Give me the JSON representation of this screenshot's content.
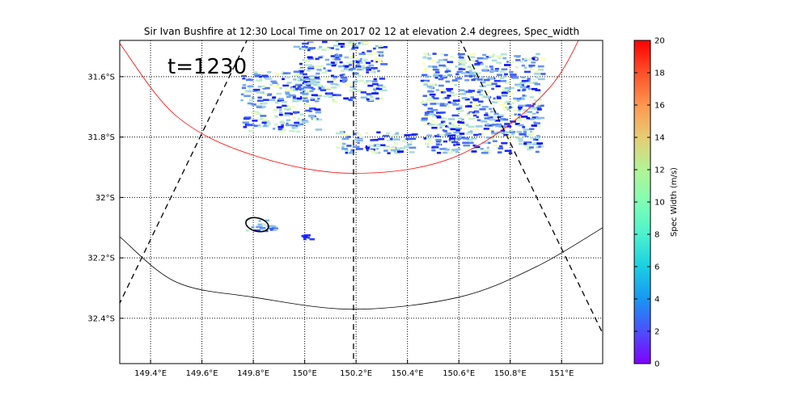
{
  "chart_data": {
    "type": "heatmap",
    "title": "Sir Ivan Bushfire at 12:30 Local Time on 2017 02 12 at elevation 2.4 degrees, Spec_width",
    "annotation": "t=1230",
    "xlabel": "",
    "ylabel": "",
    "xlim": [
      149.28,
      151.16
    ],
    "ylim": [
      -32.55,
      -31.48
    ],
    "x_ticks": [
      {
        "value": 149.4,
        "label": "149.4°E"
      },
      {
        "value": 149.6,
        "label": "149.6°E"
      },
      {
        "value": 149.8,
        "label": "149.8°E"
      },
      {
        "value": 150.0,
        "label": "150°E"
      },
      {
        "value": 150.2,
        "label": "150.2°E"
      },
      {
        "value": 150.4,
        "label": "150.4°E"
      },
      {
        "value": 150.6,
        "label": "150.6°E"
      },
      {
        "value": 150.8,
        "label": "150.8°E"
      },
      {
        "value": 151.0,
        "label": "151°E"
      }
    ],
    "y_ticks": [
      {
        "value": -31.6,
        "label": "31.6°S"
      },
      {
        "value": -31.8,
        "label": "31.8°S"
      },
      {
        "value": -32.0,
        "label": "32°S"
      },
      {
        "value": -32.2,
        "label": "32.2°S"
      },
      {
        "value": -32.4,
        "label": "32.4°S"
      }
    ],
    "grid": true,
    "radar_center": [
      150.19,
      -30.75
    ],
    "range_rings": [
      {
        "name": "inner-ring",
        "color": "#ff0000",
        "points": [
          [
            149.28,
            -31.49
          ],
          [
            149.5,
            -31.73
          ],
          [
            149.8,
            -31.86
          ],
          [
            150.19,
            -31.92
          ],
          [
            150.6,
            -31.86
          ],
          [
            150.95,
            -31.64
          ],
          [
            151.13,
            -31.36
          ]
        ]
      },
      {
        "name": "outer-ring",
        "color": "#000000",
        "points": [
          [
            149.28,
            -32.13
          ],
          [
            149.5,
            -32.28
          ],
          [
            149.8,
            -32.33
          ],
          [
            150.19,
            -32.37
          ],
          [
            150.6,
            -32.33
          ],
          [
            150.9,
            -32.23
          ],
          [
            151.16,
            -32.1
          ]
        ]
      }
    ],
    "dashed_lines": [
      {
        "name": "left-beam",
        "start": [
          150.19,
          -30.75
        ],
        "end": [
          149.28,
          -32.35
        ]
      },
      {
        "name": "center-beam",
        "start": [
          150.19,
          -30.75
        ],
        "end": [
          150.19,
          -32.55
        ]
      },
      {
        "name": "right-beam",
        "start": [
          150.19,
          -30.75
        ],
        "end": [
          151.16,
          -32.45
        ]
      }
    ],
    "fire_contour": {
      "center": [
        149.815,
        -32.09
      ],
      "rx": 0.045,
      "ry": 0.022,
      "color": "#000000"
    },
    "echo_regions": [
      {
        "name": "echo-nw-band",
        "lon": [
          149.75,
          150.05
        ],
        "lat": [
          -31.78,
          -31.58
        ],
        "value_range": [
          0,
          10
        ]
      },
      {
        "name": "echo-north",
        "lon": [
          149.95,
          150.3
        ],
        "lat": [
          -31.68,
          -31.48
        ],
        "value_range": [
          0,
          10
        ]
      },
      {
        "name": "echo-center",
        "lon": [
          150.12,
          150.42
        ],
        "lat": [
          -31.85,
          -31.78
        ],
        "value_range": [
          0,
          10
        ]
      },
      {
        "name": "echo-ne",
        "lon": [
          150.45,
          150.92
        ],
        "lat": [
          -31.85,
          -31.52
        ],
        "value_range": [
          0,
          10
        ]
      },
      {
        "name": "echo-fire",
        "lon": [
          149.76,
          149.88
        ],
        "lat": [
          -32.11,
          -32.07
        ],
        "value_range": [
          2,
          8
        ]
      },
      {
        "name": "echo-small",
        "lon": [
          149.98,
          150.02
        ],
        "lat": [
          -32.14,
          -32.12
        ],
        "value_range": [
          0,
          2
        ]
      }
    ],
    "colorbar": {
      "label": "Spec Width (m/s)",
      "min": 0,
      "max": 20,
      "colormap": "rainbow",
      "ticks": [
        "0",
        "2",
        "4",
        "6",
        "8",
        "10",
        "12",
        "14",
        "16",
        "18",
        "20"
      ]
    }
  }
}
